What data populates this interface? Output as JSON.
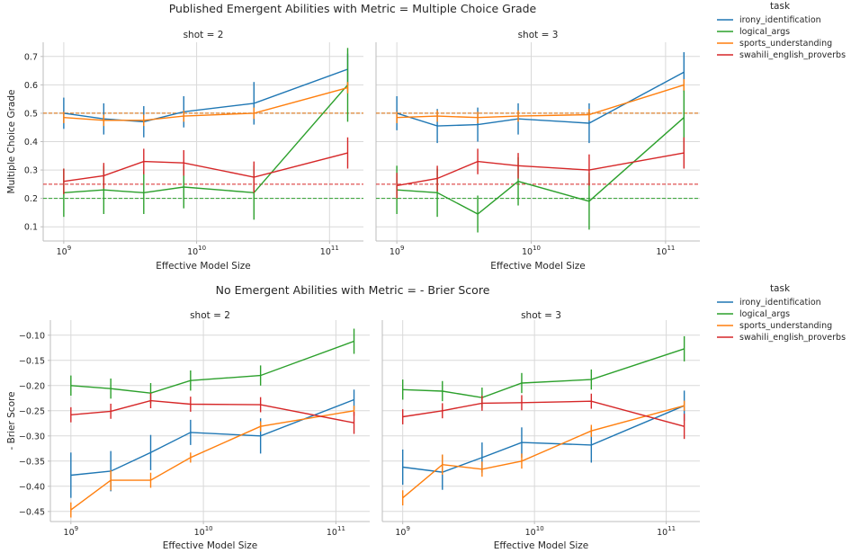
{
  "chart_data": [
    {
      "type": "line",
      "title": "Published Emergent Abilities with Metric = Multiple Choice Grade",
      "ylabel": "Multiple Choice Grade",
      "xlabel": "Effective Model Size",
      "xscale": "log",
      "xlim": [
        700000000,
        180000000000
      ],
      "ylim": [
        0.05,
        0.75
      ],
      "yticks": [
        0.1,
        0.2,
        0.3,
        0.4,
        0.5,
        0.6,
        0.7
      ],
      "ytick_labels": [
        "0.1",
        "0.2",
        "0.3",
        "0.4",
        "0.5",
        "0.6",
        "0.7"
      ],
      "xticks": [
        1000000000,
        10000000000,
        100000000000
      ],
      "xtick_labels": [
        [
          "10",
          "9"
        ],
        [
          "10",
          "10"
        ],
        [
          "10",
          "11"
        ]
      ],
      "grid": true,
      "legend": {
        "title": "task",
        "placement": "right"
      },
      "reference_lines": [
        {
          "task": "irony_identification",
          "y": 0.5
        },
        {
          "task": "sports_understanding",
          "y": 0.5
        },
        {
          "task": "swahili_english_proverbs",
          "y": 0.25
        },
        {
          "task": "logical_args",
          "y": 0.2
        }
      ],
      "facets": [
        {
          "title": "shot = 2",
          "series": [
            {
              "name": "irony_identification",
              "x": [
                1000000000,
                2000000000,
                4000000000,
                8000000000,
                27000000000,
                137000000000
              ],
              "y": [
                0.5,
                0.48,
                0.47,
                0.505,
                0.535,
                0.655
              ],
              "err": [
                0.055,
                0.055,
                0.055,
                0.055,
                0.075,
                0.055
              ]
            },
            {
              "name": "logical_args",
              "x": [
                1000000000,
                2000000000,
                4000000000,
                8000000000,
                27000000000,
                137000000000
              ],
              "y": [
                0.22,
                0.23,
                0.22,
                0.24,
                0.22,
                0.6
              ],
              "err": [
                0.085,
                0.085,
                0.075,
                0.075,
                0.095,
                0.13
              ]
            },
            {
              "name": "sports_understanding",
              "x": [
                1000000000,
                2000000000,
                4000000000,
                8000000000,
                27000000000,
                137000000000
              ],
              "y": [
                0.485,
                0.475,
                0.475,
                0.49,
                0.5,
                0.59
              ],
              "err": [
                0.02,
                0.02,
                0.02,
                0.02,
                0.02,
                0.02
              ]
            },
            {
              "name": "swahili_english_proverbs",
              "x": [
                1000000000,
                2000000000,
                4000000000,
                8000000000,
                27000000000,
                137000000000
              ],
              "y": [
                0.26,
                0.28,
                0.33,
                0.325,
                0.275,
                0.36
              ],
              "err": [
                0.045,
                0.045,
                0.045,
                0.045,
                0.055,
                0.055
              ]
            }
          ]
        },
        {
          "title": "shot = 3",
          "series": [
            {
              "name": "irony_identification",
              "x": [
                1000000000,
                2000000000,
                4000000000,
                8000000000,
                27000000000,
                137000000000
              ],
              "y": [
                0.5,
                0.455,
                0.46,
                0.48,
                0.465,
                0.645
              ],
              "err": [
                0.06,
                0.06,
                0.06,
                0.055,
                0.07,
                0.07
              ]
            },
            {
              "name": "logical_args",
              "x": [
                1000000000,
                2000000000,
                4000000000,
                8000000000,
                27000000000,
                137000000000
              ],
              "y": [
                0.23,
                0.22,
                0.145,
                0.26,
                0.19,
                0.485
              ],
              "err": [
                0.085,
                0.085,
                0.065,
                0.085,
                0.1,
                0.12
              ]
            },
            {
              "name": "sports_understanding",
              "x": [
                1000000000,
                2000000000,
                4000000000,
                8000000000,
                27000000000,
                137000000000
              ],
              "y": [
                0.485,
                0.49,
                0.485,
                0.49,
                0.495,
                0.6
              ],
              "err": [
                0.02,
                0.02,
                0.02,
                0.02,
                0.02,
                0.02
              ]
            },
            {
              "name": "swahili_english_proverbs",
              "x": [
                1000000000,
                2000000000,
                4000000000,
                8000000000,
                27000000000,
                137000000000
              ],
              "y": [
                0.245,
                0.27,
                0.33,
                0.315,
                0.3,
                0.36
              ],
              "err": [
                0.045,
                0.045,
                0.045,
                0.045,
                0.055,
                0.055
              ]
            }
          ]
        }
      ]
    },
    {
      "type": "line",
      "title": "No Emergent Abilities with Metric = - Brier Score",
      "ylabel": "- Brier Score",
      "xlabel": "Effective Model Size",
      "xscale": "log",
      "xlim": [
        700000000,
        180000000000
      ],
      "ylim": [
        -0.47,
        -0.07
      ],
      "yticks": [
        -0.45,
        -0.4,
        -0.35,
        -0.3,
        -0.25,
        -0.2,
        -0.15,
        -0.1
      ],
      "ytick_labels": [
        "−0.45",
        "−0.40",
        "−0.35",
        "−0.30",
        "−0.25",
        "−0.20",
        "−0.15",
        "−0.10"
      ],
      "xticks": [
        1000000000,
        10000000000,
        100000000000
      ],
      "xtick_labels": [
        [
          "10",
          "9"
        ],
        [
          "10",
          "10"
        ],
        [
          "10",
          "11"
        ]
      ],
      "grid": true,
      "legend": {
        "title": "task",
        "placement": "right"
      },
      "reference_lines": [],
      "facets": [
        {
          "title": "shot = 2",
          "series": [
            {
              "name": "irony_identification",
              "x": [
                1000000000,
                2000000000,
                4000000000,
                8000000000,
                27000000000,
                137000000000
              ],
              "y": [
                -0.378,
                -0.37,
                -0.333,
                -0.293,
                -0.3,
                -0.228
              ],
              "err": [
                0.045,
                0.04,
                0.035,
                0.025,
                0.035,
                0.02
              ]
            },
            {
              "name": "logical_args",
              "x": [
                1000000000,
                2000000000,
                4000000000,
                8000000000,
                27000000000,
                137000000000
              ],
              "y": [
                -0.2,
                -0.206,
                -0.215,
                -0.19,
                -0.18,
                -0.112
              ],
              "err": [
                0.02,
                0.02,
                0.02,
                0.02,
                0.02,
                0.025
              ]
            },
            {
              "name": "sports_understanding",
              "x": [
                1000000000,
                2000000000,
                4000000000,
                8000000000,
                27000000000,
                137000000000
              ],
              "y": [
                -0.447,
                -0.388,
                -0.388,
                -0.343,
                -0.281,
                -0.25
              ],
              "err": [
                0.015,
                0.02,
                0.015,
                0.01,
                0.01,
                0.01
              ]
            },
            {
              "name": "swahili_english_proverbs",
              "x": [
                1000000000,
                2000000000,
                4000000000,
                8000000000,
                27000000000,
                137000000000
              ],
              "y": [
                -0.258,
                -0.251,
                -0.23,
                -0.237,
                -0.238,
                -0.274
              ],
              "err": [
                0.015,
                0.015,
                0.015,
                0.015,
                0.015,
                0.022
              ]
            }
          ]
        },
        {
          "title": "shot = 3",
          "series": [
            {
              "name": "irony_identification",
              "x": [
                1000000000,
                2000000000,
                4000000000,
                8000000000,
                27000000000,
                137000000000
              ],
              "y": [
                -0.362,
                -0.372,
                -0.343,
                -0.313,
                -0.318,
                -0.24
              ],
              "err": [
                0.035,
                0.035,
                0.03,
                0.03,
                0.035,
                0.03
              ]
            },
            {
              "name": "logical_args",
              "x": [
                1000000000,
                2000000000,
                4000000000,
                8000000000,
                27000000000,
                137000000000
              ],
              "y": [
                -0.208,
                -0.211,
                -0.224,
                -0.195,
                -0.188,
                -0.127
              ],
              "err": [
                0.02,
                0.02,
                0.02,
                0.02,
                0.02,
                0.025
              ]
            },
            {
              "name": "sports_understanding",
              "x": [
                1000000000,
                2000000000,
                4000000000,
                8000000000,
                27000000000,
                137000000000
              ],
              "y": [
                -0.423,
                -0.357,
                -0.366,
                -0.35,
                -0.29,
                -0.24
              ],
              "err": [
                0.015,
                0.02,
                0.015,
                0.015,
                0.012,
                0.01
              ]
            },
            {
              "name": "swahili_english_proverbs",
              "x": [
                1000000000,
                2000000000,
                4000000000,
                8000000000,
                27000000000,
                137000000000
              ],
              "y": [
                -0.262,
                -0.25,
                -0.235,
                -0.234,
                -0.231,
                -0.281
              ],
              "err": [
                0.015,
                0.015,
                0.015,
                0.015,
                0.015,
                0.025
              ]
            }
          ]
        }
      ]
    }
  ],
  "legend_items": [
    {
      "label": "irony_identification",
      "color": "#1f77b4"
    },
    {
      "label": "logical_args",
      "color": "#2ca02c"
    },
    {
      "label": "sports_understanding",
      "color": "#ff7f0e"
    },
    {
      "label": "swahili_english_proverbs",
      "color": "#d62728"
    }
  ]
}
